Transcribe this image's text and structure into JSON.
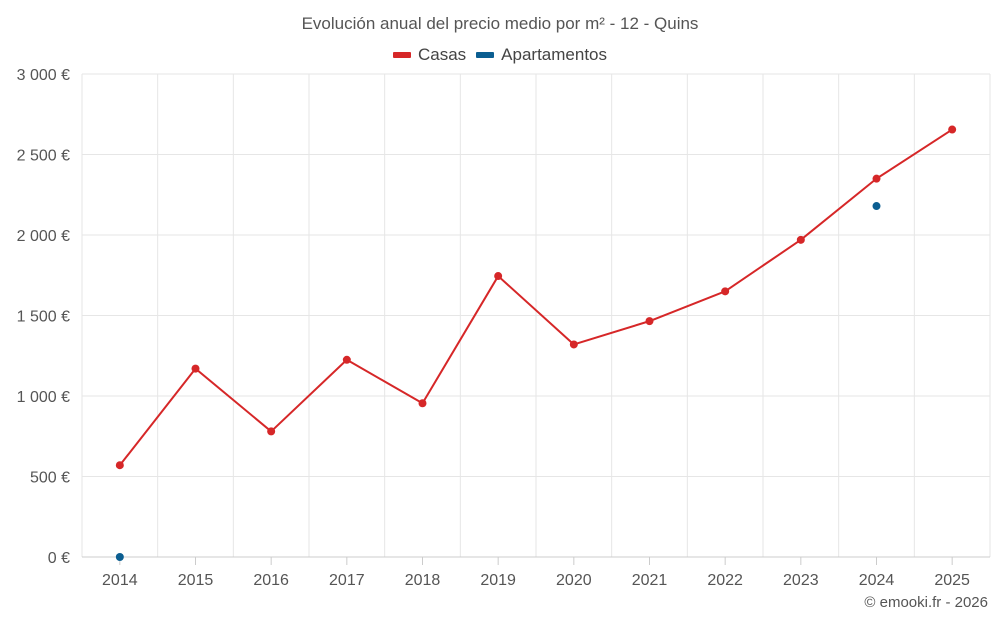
{
  "chart_data": {
    "type": "line",
    "title": "Evolución anual del precio medio por m² - 12 - Quins",
    "xlabel": "",
    "ylabel": "",
    "categories": [
      "2014",
      "2015",
      "2016",
      "2017",
      "2018",
      "2019",
      "2020",
      "2021",
      "2022",
      "2023",
      "2024",
      "2025"
    ],
    "ylim": [
      0,
      3000
    ],
    "y_ticks": [
      0,
      500,
      1000,
      1500,
      2000,
      2500,
      3000
    ],
    "y_tick_labels": [
      "0 €",
      "500 €",
      "1 000 €",
      "1 500 €",
      "2 000 €",
      "2 500 €",
      "3 000 €"
    ],
    "grid": true,
    "legend_position": "top-center",
    "series": [
      {
        "name": "Casas",
        "color": "#d62728",
        "style": "line-with-markers",
        "values": [
          570,
          1170,
          780,
          1225,
          955,
          1745,
          1320,
          1465,
          1650,
          1970,
          2350,
          2655
        ]
      },
      {
        "name": "Apartamentos",
        "color": "#0b5e91",
        "style": "markers",
        "values": [
          0,
          null,
          null,
          null,
          null,
          null,
          null,
          null,
          null,
          null,
          2180,
          null
        ]
      }
    ]
  },
  "credit": "© emooki.fr - 2026"
}
